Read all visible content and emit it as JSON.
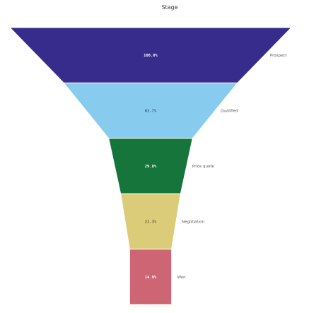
{
  "chart_data": {
    "type": "funnel",
    "title": "Stage",
    "categories": [
      "Prospect",
      "Qualified",
      "Price quote",
      "Negotiation",
      "Won"
    ],
    "values": [
      100.0,
      61.7,
      29.8,
      21.3,
      14.9
    ],
    "value_labels": [
      "100.0%",
      "61.7%",
      "29.8%",
      "21.3%",
      "14.9%"
    ],
    "colors": [
      "#372c8c",
      "#87cbee",
      "#15753b",
      "#dbcc79",
      "#cd6574"
    ],
    "label_colors": [
      "#ffffff",
      "#3c5a72",
      "#ffffff",
      "#6b6130",
      "#ffffff"
    ],
    "legend": "none"
  }
}
